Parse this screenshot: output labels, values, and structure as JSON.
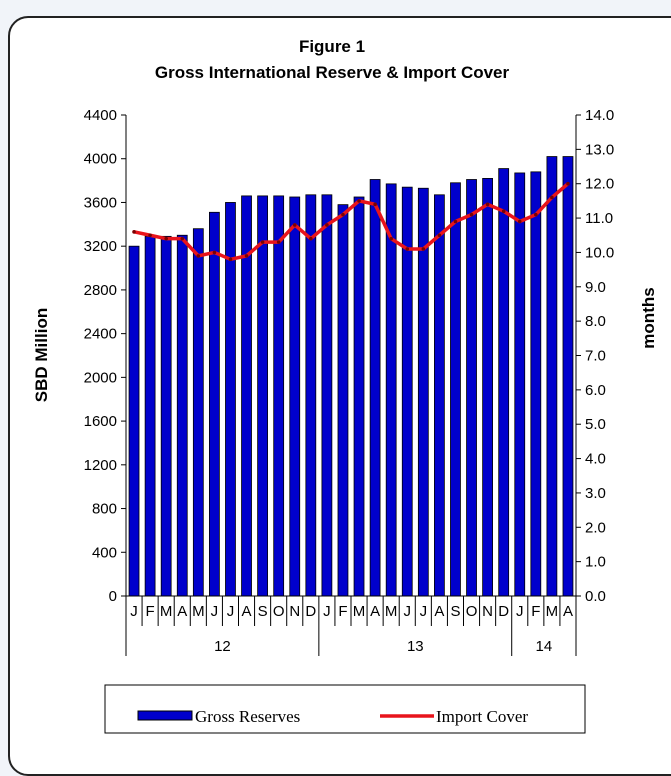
{
  "chart_data": {
    "type": "bar",
    "title": "Figure 1",
    "subtitle": "Gross International Reserve & Import Cover",
    "ylabel": "SBD Million",
    "y2label": "months",
    "ylim": [
      0,
      4400
    ],
    "y2lim": [
      0.0,
      14.0
    ],
    "yticks": [
      "0",
      "400",
      "800",
      "1200",
      "1600",
      "2000",
      "2400",
      "2800",
      "3200",
      "3600",
      "4000",
      "4400"
    ],
    "y2ticks": [
      "0.0",
      "1.0",
      "2.0",
      "3.0",
      "4.0",
      "5.0",
      "6.0",
      "7.0",
      "8.0",
      "9.0",
      "10.0",
      "11.0",
      "12.0",
      "13.0",
      "14.0"
    ],
    "categories": [
      "J",
      "F",
      "M",
      "A",
      "M",
      "J",
      "J",
      "A",
      "S",
      "O",
      "N",
      "D",
      "J",
      "F",
      "M",
      "A",
      "M",
      "J",
      "J",
      "A",
      "S",
      "O",
      "N",
      "D",
      "J",
      "F",
      "M",
      "A"
    ],
    "year_groups": [
      {
        "label": "12",
        "count": 12
      },
      {
        "label": "13",
        "count": 12
      },
      {
        "label": "14",
        "count": 4
      }
    ],
    "grid": false,
    "legend_position": "bottom",
    "series": [
      {
        "name": "Gross Reserves",
        "axis": "left",
        "kind": "bar",
        "color": "#0000cc",
        "values": [
          3200,
          3290,
          3290,
          3300,
          3360,
          3510,
          3600,
          3660,
          3660,
          3660,
          3650,
          3670,
          3670,
          3580,
          3650,
          3810,
          3770,
          3740,
          3730,
          3670,
          3780,
          3810,
          3820,
          3910,
          3870,
          3880,
          4020,
          4020
        ]
      },
      {
        "name": "Import Cover",
        "axis": "right",
        "kind": "line",
        "color": "#e8141b",
        "values": [
          10.6,
          10.5,
          10.4,
          10.4,
          9.9,
          10.0,
          9.8,
          9.9,
          10.3,
          10.3,
          10.8,
          10.4,
          10.8,
          11.1,
          11.5,
          11.4,
          10.4,
          10.1,
          10.1,
          10.5,
          10.9,
          11.1,
          11.4,
          11.2,
          10.9,
          11.1,
          11.6,
          12.0
        ]
      }
    ]
  }
}
